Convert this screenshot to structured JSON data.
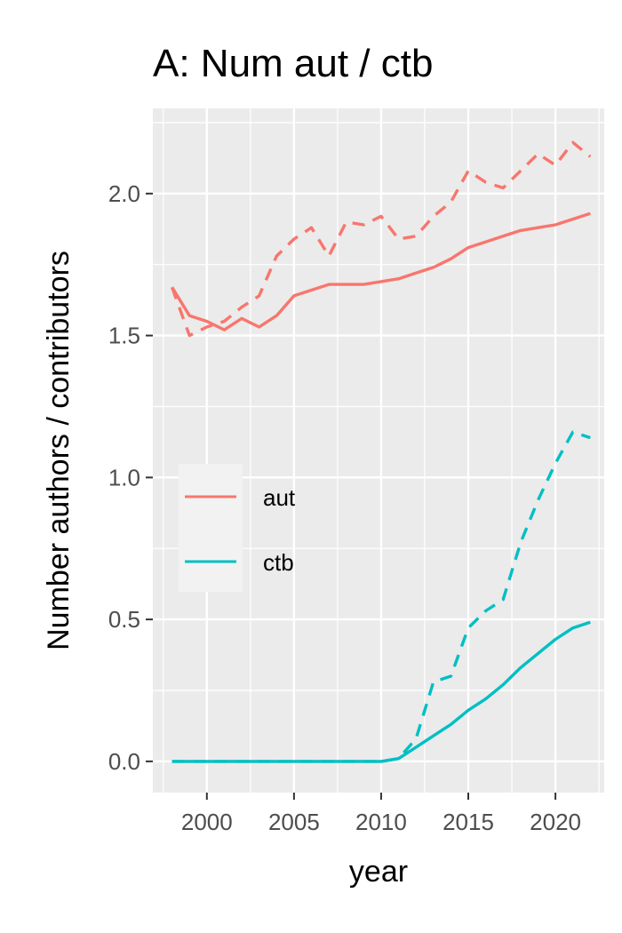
{
  "chart_data": {
    "type": "line",
    "title": "A: Num aut / ctb",
    "xlabel": "year",
    "ylabel": "Number authors / contributors",
    "xlim": [
      1996.9,
      2022.8
    ],
    "ylim": [
      -0.11,
      2.3
    ],
    "xticks": [
      2000,
      2005,
      2010,
      2015,
      2020
    ],
    "yticks": [
      0.0,
      0.5,
      1.0,
      1.5,
      2.0
    ],
    "ytick_labels": [
      "0.0",
      "0.5",
      "1.0",
      "1.5",
      "2.0"
    ],
    "grid": true,
    "legend_position": "left-center",
    "colors": {
      "aut": "#F8766D",
      "ctb": "#00BFC4",
      "panel": "#EBEBEB",
      "grid": "#FFFFFF",
      "legend_bg": "#F2F2F2"
    },
    "legend": [
      {
        "label": "aut",
        "color": "#F8766D"
      },
      {
        "label": "ctb",
        "color": "#00BFC4"
      }
    ],
    "x": [
      1998,
      1999,
      2000,
      2001,
      2002,
      2003,
      2004,
      2005,
      2006,
      2007,
      2008,
      2009,
      2010,
      2011,
      2012,
      2013,
      2014,
      2015,
      2016,
      2017,
      2018,
      2019,
      2020,
      2021,
      2022
    ],
    "series": [
      {
        "group": "aut",
        "linetype": "solid",
        "color": "#F8766D",
        "values": [
          1.67,
          1.57,
          1.55,
          1.52,
          1.56,
          1.53,
          1.57,
          1.64,
          1.66,
          1.68,
          1.68,
          1.68,
          1.69,
          1.7,
          1.72,
          1.74,
          1.77,
          1.81,
          1.83,
          1.85,
          1.87,
          1.88,
          1.89,
          1.91,
          1.93
        ]
      },
      {
        "group": "aut",
        "linetype": "dashed",
        "color": "#F8766D",
        "values": [
          1.67,
          1.5,
          1.53,
          1.55,
          1.6,
          1.64,
          1.78,
          1.84,
          1.88,
          1.78,
          1.9,
          1.89,
          1.92,
          1.84,
          1.85,
          1.92,
          1.97,
          2.08,
          2.04,
          2.02,
          2.08,
          2.14,
          2.1,
          2.18,
          2.13
        ]
      },
      {
        "group": "ctb",
        "linetype": "solid",
        "color": "#00BFC4",
        "values": [
          0.0,
          0.0,
          0.0,
          0.0,
          0.0,
          0.0,
          0.0,
          0.0,
          0.0,
          0.0,
          0.0,
          0.0,
          0.0,
          0.01,
          0.05,
          0.09,
          0.13,
          0.18,
          0.22,
          0.27,
          0.33,
          0.38,
          0.43,
          0.47,
          0.49
        ]
      },
      {
        "group": "ctb",
        "linetype": "dashed",
        "color": "#00BFC4",
        "values": [
          0.0,
          0.0,
          0.0,
          0.0,
          0.0,
          0.0,
          0.0,
          0.0,
          0.0,
          0.0,
          0.0,
          0.0,
          0.0,
          0.01,
          0.08,
          0.28,
          0.3,
          0.47,
          0.53,
          0.57,
          0.77,
          0.92,
          1.05,
          1.16,
          1.14
        ]
      }
    ]
  }
}
